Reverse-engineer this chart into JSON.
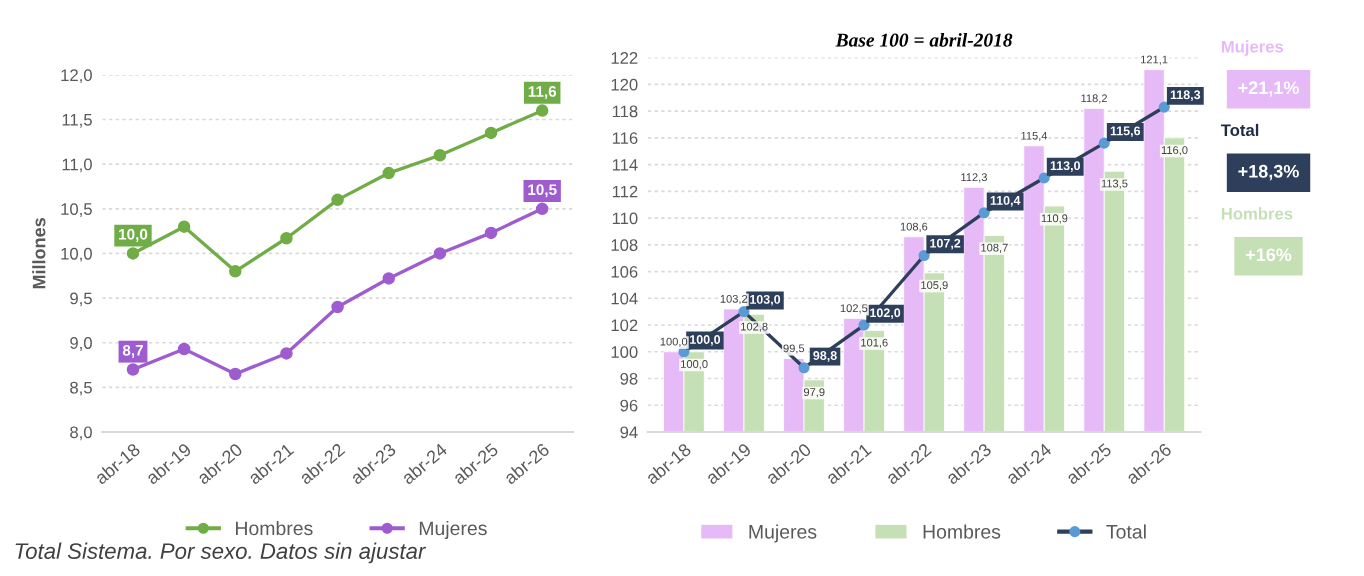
{
  "chart_data": [
    {
      "type": "line",
      "ylabel": "Millones",
      "categories": [
        "abr-18",
        "abr-19",
        "abr-20",
        "abr-21",
        "abr-22",
        "abr-23",
        "abr-24",
        "abr-25",
        "abr-26"
      ],
      "series": [
        {
          "name": "Hombres",
          "color": "#70ad47",
          "values": [
            10.0,
            10.3,
            9.8,
            10.17,
            10.6,
            10.9,
            11.1,
            11.35,
            11.6
          ],
          "value_labels": [
            "10,0",
            null,
            null,
            null,
            null,
            null,
            null,
            null,
            "11,6"
          ]
        },
        {
          "name": "Mujeres",
          "color": "#9e5ccf",
          "values": [
            8.7,
            8.93,
            8.65,
            8.88,
            9.4,
            9.72,
            10.0,
            10.23,
            10.5
          ],
          "value_labels": [
            "8,7",
            null,
            null,
            null,
            null,
            null,
            null,
            null,
            "10,5"
          ]
        }
      ],
      "ylim": [
        8.0,
        12.0
      ],
      "yticks": [
        {
          "value": 8.0,
          "label": "8,0"
        },
        {
          "value": 8.5,
          "label": "8,5"
        },
        {
          "value": 9.0,
          "label": "9,0"
        },
        {
          "value": 9.5,
          "label": "9,5"
        },
        {
          "value": 10.0,
          "label": "10,0"
        },
        {
          "value": 10.5,
          "label": "10,5"
        },
        {
          "value": 11.0,
          "label": "11,0"
        },
        {
          "value": 11.5,
          "label": "11,5"
        },
        {
          "value": 12.0,
          "label": "12,0"
        }
      ],
      "grid": "y",
      "legend": "bottom",
      "marker": "circle",
      "annotations": [
        "Total Sistema. Por sexo. Datos sin ajustar"
      ]
    },
    {
      "type": "bar",
      "title": "Base 100 = abril-2018",
      "categories": [
        "abr-18",
        "abr-19",
        "abr-20",
        "abr-21",
        "abr-22",
        "abr-23",
        "abr-24",
        "abr-25",
        "abr-26"
      ],
      "series": [
        {
          "name": "Mujeres",
          "color": "#e6b9f7",
          "values": [
            100.0,
            103.2,
            99.5,
            102.5,
            108.6,
            112.3,
            115.4,
            118.2,
            121.1
          ],
          "value_labels": [
            "100,0",
            "103,2",
            "99,5",
            "102,5",
            "108,6",
            "112,3",
            "115,4",
            "118,2",
            "121,1"
          ]
        },
        {
          "name": "Hombres",
          "color": "#c5e0b4",
          "values": [
            100.0,
            102.8,
            97.9,
            101.6,
            105.9,
            108.7,
            110.9,
            113.5,
            116.0
          ],
          "value_labels": [
            "100,0",
            "102,8",
            "97,9",
            "101,6",
            "105,9",
            "108,7",
            "110,9",
            "113,5",
            "116,0"
          ]
        },
        {
          "name": "Total",
          "type": "line",
          "color": "#2e3f5c",
          "values": [
            100.0,
            103.0,
            98.8,
            102.0,
            107.2,
            110.4,
            113.0,
            115.6,
            118.3
          ],
          "value_labels": [
            "100,0",
            "103,0",
            "98,8",
            "102,0",
            "107,2",
            "110,4",
            "113,0",
            "115,6",
            "118,3"
          ]
        }
      ],
      "ylim": [
        94,
        122
      ],
      "yticks": [
        94,
        96,
        98,
        100,
        102,
        104,
        106,
        108,
        110,
        112,
        114,
        116,
        118,
        120,
        122
      ],
      "grid": "y",
      "legend": "bottom",
      "marker": "circle",
      "annotations": [
        "Mujeres",
        "+21,1%",
        "Total",
        "+18,3%",
        "Hombres",
        "+16%"
      ]
    }
  ]
}
